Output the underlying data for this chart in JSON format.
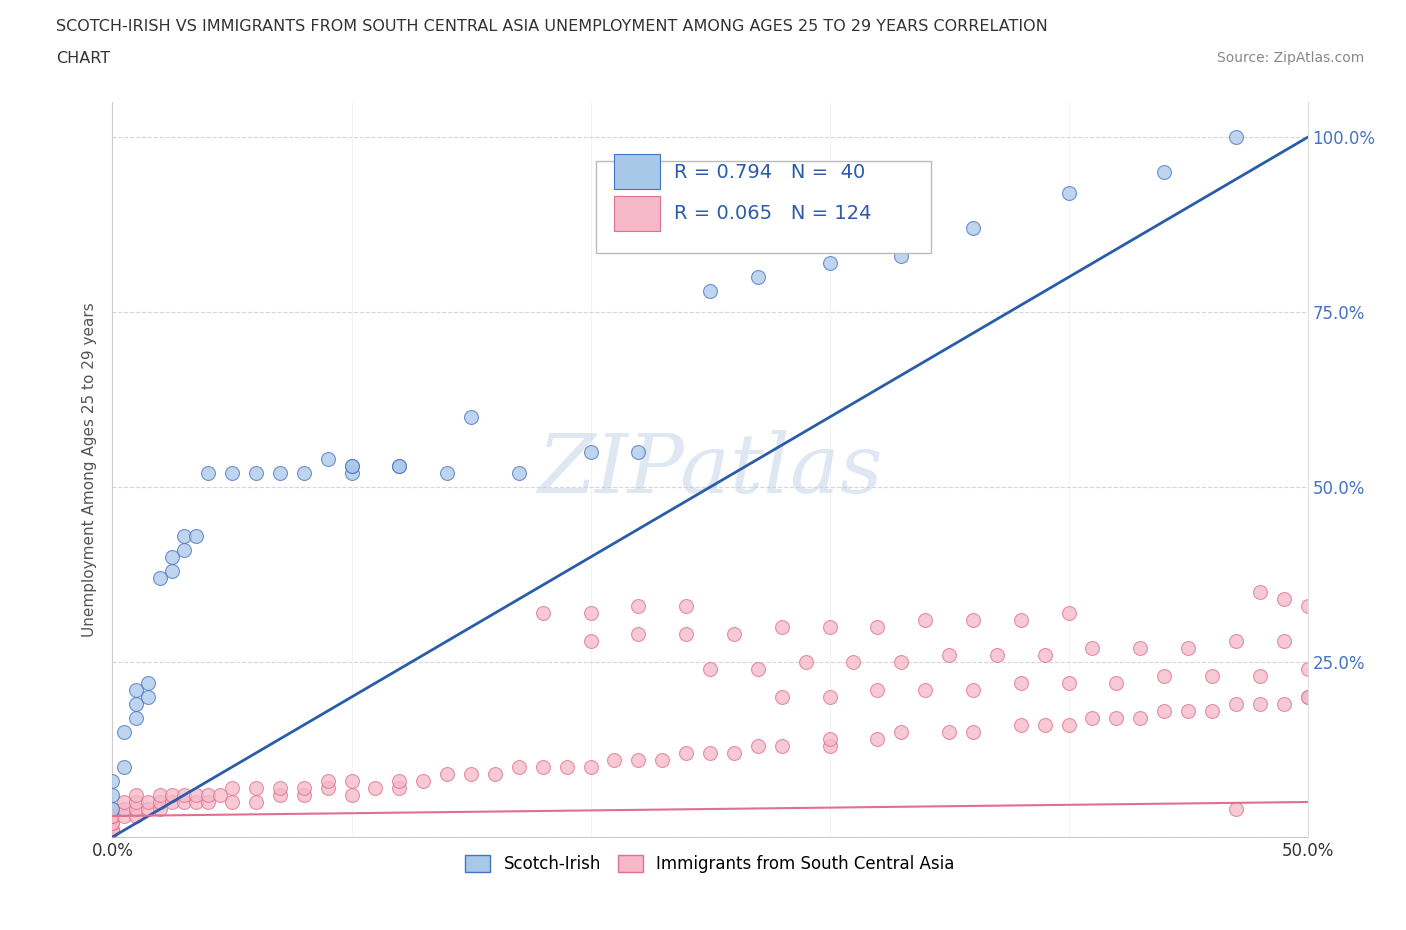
{
  "title_line1": "SCOTCH-IRISH VS IMMIGRANTS FROM SOUTH CENTRAL ASIA UNEMPLOYMENT AMONG AGES 25 TO 29 YEARS CORRELATION",
  "title_line2": "CHART",
  "source_text": "Source: ZipAtlas.com",
  "ylabel": "Unemployment Among Ages 25 to 29 years",
  "xmin": 0.0,
  "xmax": 0.5,
  "ymin": 0.0,
  "ymax": 1.05,
  "scotch_irish_color": "#a8c8e8",
  "scotch_irish_edge": "#4472c4",
  "immigrants_color": "#f4b8c8",
  "immigrants_edge": "#e07090",
  "line_si_color": "#2a5caa",
  "line_im_color": "#e07090",
  "watermark": "ZIPatlas",
  "scotch_irish_x": [
    0.0,
    0.0,
    0.0,
    0.005,
    0.005,
    0.01,
    0.01,
    0.01,
    0.015,
    0.015,
    0.02,
    0.025,
    0.025,
    0.03,
    0.03,
    0.035,
    0.04,
    0.05,
    0.06,
    0.07,
    0.08,
    0.09,
    0.1,
    0.1,
    0.1,
    0.12,
    0.12,
    0.14,
    0.15,
    0.17,
    0.2,
    0.22,
    0.25,
    0.27,
    0.3,
    0.33,
    0.36,
    0.4,
    0.44,
    0.47
  ],
  "scotch_irish_y": [
    0.04,
    0.06,
    0.08,
    0.1,
    0.15,
    0.17,
    0.19,
    0.21,
    0.2,
    0.22,
    0.37,
    0.38,
    0.4,
    0.41,
    0.43,
    0.43,
    0.52,
    0.52,
    0.52,
    0.52,
    0.52,
    0.54,
    0.52,
    0.53,
    0.53,
    0.53,
    0.53,
    0.52,
    0.6,
    0.52,
    0.55,
    0.55,
    0.78,
    0.8,
    0.82,
    0.83,
    0.87,
    0.92,
    0.95,
    1.0
  ],
  "immigrants_x": [
    0.0,
    0.0,
    0.0,
    0.0,
    0.0,
    0.0,
    0.0,
    0.0,
    0.005,
    0.005,
    0.005,
    0.01,
    0.01,
    0.01,
    0.01,
    0.015,
    0.015,
    0.02,
    0.02,
    0.02,
    0.025,
    0.025,
    0.03,
    0.03,
    0.035,
    0.035,
    0.04,
    0.04,
    0.045,
    0.05,
    0.05,
    0.06,
    0.06,
    0.07,
    0.07,
    0.08,
    0.08,
    0.09,
    0.09,
    0.1,
    0.1,
    0.11,
    0.12,
    0.12,
    0.13,
    0.14,
    0.15,
    0.16,
    0.17,
    0.18,
    0.19,
    0.2,
    0.21,
    0.22,
    0.23,
    0.24,
    0.25,
    0.26,
    0.27,
    0.28,
    0.3,
    0.3,
    0.32,
    0.33,
    0.35,
    0.36,
    0.38,
    0.39,
    0.4,
    0.41,
    0.42,
    0.43,
    0.44,
    0.45,
    0.46,
    0.47,
    0.48,
    0.49,
    0.5,
    0.5,
    0.28,
    0.3,
    0.32,
    0.34,
    0.36,
    0.38,
    0.4,
    0.42,
    0.44,
    0.46,
    0.48,
    0.5,
    0.25,
    0.27,
    0.29,
    0.31,
    0.33,
    0.35,
    0.37,
    0.39,
    0.41,
    0.43,
    0.45,
    0.47,
    0.49,
    0.2,
    0.22,
    0.24,
    0.26,
    0.28,
    0.3,
    0.32,
    0.34,
    0.36,
    0.38,
    0.4,
    0.18,
    0.2,
    0.22,
    0.24,
    0.5,
    0.49,
    0.48,
    0.47
  ],
  "immigrants_y": [
    0.01,
    0.01,
    0.01,
    0.02,
    0.02,
    0.03,
    0.03,
    0.04,
    0.03,
    0.04,
    0.05,
    0.03,
    0.04,
    0.05,
    0.06,
    0.04,
    0.05,
    0.04,
    0.05,
    0.06,
    0.05,
    0.06,
    0.05,
    0.06,
    0.05,
    0.06,
    0.05,
    0.06,
    0.06,
    0.05,
    0.07,
    0.05,
    0.07,
    0.06,
    0.07,
    0.06,
    0.07,
    0.07,
    0.08,
    0.06,
    0.08,
    0.07,
    0.07,
    0.08,
    0.08,
    0.09,
    0.09,
    0.09,
    0.1,
    0.1,
    0.1,
    0.1,
    0.11,
    0.11,
    0.11,
    0.12,
    0.12,
    0.12,
    0.13,
    0.13,
    0.13,
    0.14,
    0.14,
    0.15,
    0.15,
    0.15,
    0.16,
    0.16,
    0.16,
    0.17,
    0.17,
    0.17,
    0.18,
    0.18,
    0.18,
    0.19,
    0.19,
    0.19,
    0.2,
    0.2,
    0.2,
    0.2,
    0.21,
    0.21,
    0.21,
    0.22,
    0.22,
    0.22,
    0.23,
    0.23,
    0.23,
    0.24,
    0.24,
    0.24,
    0.25,
    0.25,
    0.25,
    0.26,
    0.26,
    0.26,
    0.27,
    0.27,
    0.27,
    0.28,
    0.28,
    0.28,
    0.29,
    0.29,
    0.29,
    0.3,
    0.3,
    0.3,
    0.31,
    0.31,
    0.31,
    0.32,
    0.32,
    0.32,
    0.33,
    0.33,
    0.33,
    0.34,
    0.35,
    0.04
  ]
}
